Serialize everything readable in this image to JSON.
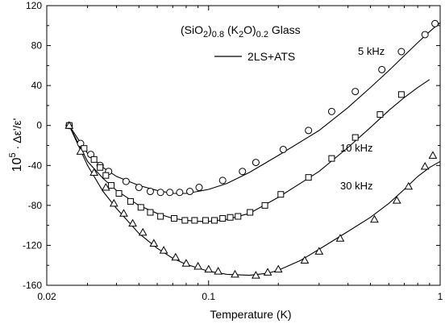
{
  "chart_data": {
    "type": "scatter",
    "title": "",
    "xlabel": "Temperature (K)",
    "ylabel_prefix": "10",
    "ylabel_exp": "5",
    "ylabel_main": " · Δε'/ε'",
    "xscale": "log",
    "xlim": [
      0.02,
      1
    ],
    "ylim": [
      -160,
      120
    ],
    "xticks": [
      {
        "value": 0.02,
        "label": "0.02"
      },
      {
        "value": 0.1,
        "label": "0.1"
      },
      {
        "value": 1,
        "label": "1"
      }
    ],
    "yticks": [
      -160,
      -120,
      -80,
      -40,
      0,
      40,
      80,
      120
    ],
    "annotation": {
      "parts": [
        {
          "text": "(SiO",
          "sub": false
        },
        {
          "text": "2",
          "sub": true
        },
        {
          "text": ")",
          "sub": false
        },
        {
          "text": "0.8",
          "sub": true
        },
        {
          "text": " (K",
          "sub": false
        },
        {
          "text": "2",
          "sub": true
        },
        {
          "text": "O)",
          "sub": false
        },
        {
          "text": "0.2",
          "sub": true
        },
        {
          "text": "  Glass",
          "sub": false
        }
      ]
    },
    "legend": {
      "line_label": "2LS+ATS",
      "placement": "top-center"
    },
    "series": [
      {
        "name": "5 kHz",
        "marker": "circle",
        "points": [
          [
            0.025,
            0
          ],
          [
            0.028,
            -18
          ],
          [
            0.031,
            -29
          ],
          [
            0.034,
            -40
          ],
          [
            0.037,
            -46
          ],
          [
            0.044,
            -56
          ],
          [
            0.05,
            -62
          ],
          [
            0.056,
            -66
          ],
          [
            0.062,
            -67
          ],
          [
            0.068,
            -67
          ],
          [
            0.075,
            -67
          ],
          [
            0.083,
            -66
          ],
          [
            0.091,
            -62
          ],
          [
            0.115,
            -55
          ],
          [
            0.14,
            -46
          ],
          [
            0.16,
            -37
          ],
          [
            0.21,
            -24
          ],
          [
            0.27,
            -5
          ],
          [
            0.34,
            14
          ],
          [
            0.43,
            34
          ],
          [
            0.56,
            56
          ],
          [
            0.68,
            74
          ],
          [
            0.86,
            91
          ],
          [
            0.95,
            102
          ]
        ],
        "fit": [
          [
            0.025,
            0
          ],
          [
            0.03,
            -28
          ],
          [
            0.035,
            -42
          ],
          [
            0.04,
            -51
          ],
          [
            0.05,
            -60
          ],
          [
            0.06,
            -65
          ],
          [
            0.07,
            -68
          ],
          [
            0.08,
            -68
          ],
          [
            0.09,
            -66
          ],
          [
            0.1,
            -64
          ],
          [
            0.12,
            -58
          ],
          [
            0.15,
            -47
          ],
          [
            0.2,
            -30
          ],
          [
            0.3,
            -5
          ],
          [
            0.4,
            18
          ],
          [
            0.5,
            38
          ],
          [
            0.6,
            55
          ],
          [
            0.7,
            70
          ],
          [
            0.8,
            83
          ],
          [
            0.9,
            94
          ],
          [
            1.0,
            103
          ]
        ]
      },
      {
        "name": "10 kHz",
        "marker": "square",
        "points": [
          [
            0.025,
            0
          ],
          [
            0.029,
            -23
          ],
          [
            0.032,
            -34
          ],
          [
            0.034,
            -42
          ],
          [
            0.036,
            -50
          ],
          [
            0.038,
            -60
          ],
          [
            0.041,
            -68
          ],
          [
            0.046,
            -76
          ],
          [
            0.051,
            -82
          ],
          [
            0.056,
            -87
          ],
          [
            0.062,
            -91
          ],
          [
            0.071,
            -93
          ],
          [
            0.079,
            -95
          ],
          [
            0.087,
            -95
          ],
          [
            0.097,
            -95
          ],
          [
            0.106,
            -95
          ],
          [
            0.115,
            -93
          ],
          [
            0.124,
            -92
          ],
          [
            0.134,
            -91
          ],
          [
            0.151,
            -87
          ],
          [
            0.175,
            -80
          ],
          [
            0.205,
            -69
          ],
          [
            0.27,
            -52
          ],
          [
            0.34,
            -33
          ],
          [
            0.43,
            -12
          ],
          [
            0.55,
            11
          ],
          [
            0.68,
            31
          ]
        ],
        "fit": [
          [
            0.025,
            0
          ],
          [
            0.03,
            -36
          ],
          [
            0.035,
            -53
          ],
          [
            0.04,
            -65
          ],
          [
            0.05,
            -80
          ],
          [
            0.06,
            -88
          ],
          [
            0.07,
            -93
          ],
          [
            0.08,
            -95
          ],
          [
            0.09,
            -96
          ],
          [
            0.1,
            -96
          ],
          [
            0.12,
            -94
          ],
          [
            0.15,
            -88
          ],
          [
            0.2,
            -72
          ],
          [
            0.3,
            -46
          ],
          [
            0.4,
            -22
          ],
          [
            0.5,
            -2
          ],
          [
            0.6,
            15
          ],
          [
            0.7,
            28
          ],
          [
            0.8,
            38
          ],
          [
            0.9,
            46
          ]
        ]
      },
      {
        "name": "30 kHz",
        "marker": "triangle",
        "points": [
          [
            0.025,
            0
          ],
          [
            0.028,
            -26
          ],
          [
            0.032,
            -47
          ],
          [
            0.036,
            -62
          ],
          [
            0.039,
            -78
          ],
          [
            0.043,
            -88
          ],
          [
            0.047,
            -98
          ],
          [
            0.052,
            -107
          ],
          [
            0.058,
            -118
          ],
          [
            0.064,
            -125
          ],
          [
            0.072,
            -132
          ],
          [
            0.08,
            -138
          ],
          [
            0.09,
            -141
          ],
          [
            0.1,
            -144
          ],
          [
            0.11,
            -146
          ],
          [
            0.13,
            -149
          ],
          [
            0.16,
            -150
          ],
          [
            0.18,
            -147
          ],
          [
            0.2,
            -144
          ],
          [
            0.26,
            -135
          ],
          [
            0.3,
            -126
          ],
          [
            0.37,
            -113
          ],
          [
            0.52,
            -94
          ],
          [
            0.65,
            -75
          ],
          [
            0.73,
            -61
          ],
          [
            0.86,
            -41
          ],
          [
            0.93,
            -30
          ]
        ],
        "fit": [
          [
            0.025,
            0
          ],
          [
            0.03,
            -40
          ],
          [
            0.035,
            -66
          ],
          [
            0.04,
            -83
          ],
          [
            0.05,
            -108
          ],
          [
            0.06,
            -123
          ],
          [
            0.07,
            -133
          ],
          [
            0.08,
            -139
          ],
          [
            0.1,
            -146
          ],
          [
            0.12,
            -149
          ],
          [
            0.15,
            -150
          ],
          [
            0.18,
            -148
          ],
          [
            0.2,
            -145
          ],
          [
            0.25,
            -135
          ],
          [
            0.3,
            -124
          ],
          [
            0.4,
            -106
          ],
          [
            0.5,
            -92
          ],
          [
            0.6,
            -78
          ],
          [
            0.7,
            -64
          ],
          [
            0.8,
            -51
          ],
          [
            0.9,
            -42
          ],
          [
            1.0,
            -36
          ]
        ]
      }
    ]
  }
}
